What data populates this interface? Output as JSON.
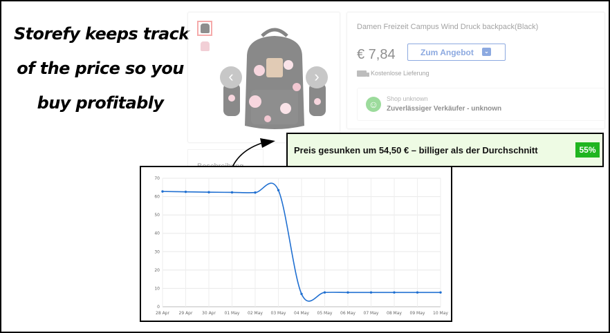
{
  "tagline": {
    "line1": "Storefy keeps track",
    "line2": "of the price so you",
    "line3": "buy profitably"
  },
  "gallery": {
    "thumbnails": [
      "backpack-black-thumbnail",
      "backpack-pink-thumbnail"
    ],
    "prev_icon": "chevron-left-icon",
    "next_icon": "chevron-right-icon",
    "prev_glyph": "‹",
    "next_glyph": "›"
  },
  "description": {
    "label": "Beschreibung"
  },
  "product": {
    "title": "Damen Freizeit Campus Wind Druck backpack(Black)",
    "price": "€ 7,84",
    "offer_button": "Zum Angebot",
    "shipping": "Kostenlose Lieferung",
    "shop_name": "Shop unknown",
    "seller_line": "Zuverlässiger Verkäufer - unknown",
    "smiley_glyph": "☺"
  },
  "alert": {
    "text": "Preis gesunken um 54,50 € – billiger als der Durchschnitt",
    "percent": "55%",
    "colors": {
      "background": "#eefbe4",
      "badge": "#1fb51f"
    }
  },
  "chart_data": {
    "type": "line",
    "categories": [
      "28 Apr",
      "29 Apr",
      "30 Apr",
      "01 May",
      "02 May",
      "03 May",
      "04 May",
      "05 May",
      "06 May",
      "07 May",
      "08 May",
      "09 May",
      "10 May"
    ],
    "series": [
      {
        "values": [
          62.8,
          62.6,
          62.4,
          62.3,
          62.2,
          63.5,
          7.0,
          7.8,
          7.8,
          7.8,
          7.8,
          7.8,
          7.8
        ],
        "color": "#1f6fd1"
      }
    ],
    "yticks": [
      0,
      10,
      20,
      30,
      40,
      50,
      60,
      70
    ],
    "ylim": [
      0,
      70
    ],
    "grid": true,
    "title": "",
    "xlabel": "",
    "ylabel": ""
  }
}
